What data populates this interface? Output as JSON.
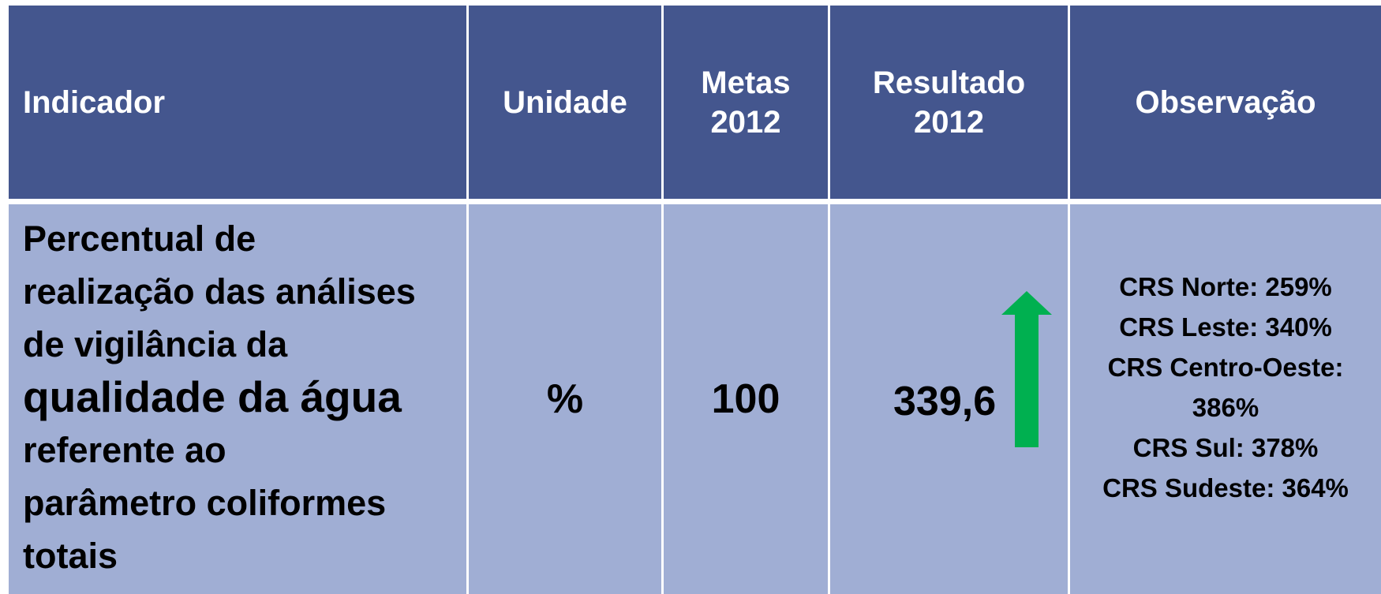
{
  "table": {
    "headers": [
      [
        "Indicador"
      ],
      [
        "Unidade"
      ],
      [
        "Metas",
        "2012"
      ],
      [
        "Resultado",
        "2012"
      ],
      [
        "Observação"
      ]
    ],
    "rows": [
      {
        "indicator": [
          "Percentual de",
          "realização das análises",
          "de vigilância da",
          "qualidade da água",
          "referente ao",
          "parâmetro coliformes",
          "totais"
        ],
        "unit": "%",
        "target": "100",
        "result": "339,6",
        "observations": [
          "CRS Norte: 259%",
          "CRS Leste: 340%",
          "CRS Centro-Oeste: 386%",
          "CRS Sul: 378%",
          "CRS Sudeste: 364%"
        ]
      }
    ]
  }
}
